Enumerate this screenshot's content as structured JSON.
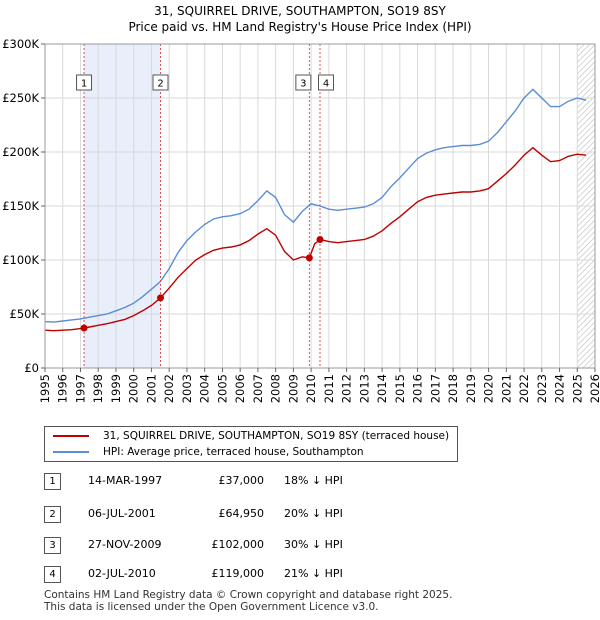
{
  "title_line1": "31, SQUIRREL DRIVE, SOUTHAMPTON, SO19 8SY",
  "title_line2": "Price paid vs. HM Land Registry's House Price Index (HPI)",
  "colors": {
    "property": "#c00000",
    "hpi": "#5b8dd6",
    "shade": "#e8eefa",
    "marker_line": "#e05050"
  },
  "legend": {
    "property": "31, SQUIRREL DRIVE, SOUTHAMPTON, SO19 8SY (terraced house)",
    "hpi": "HPI: Average price, terraced house, Southampton"
  },
  "transactions": [
    {
      "label": "1",
      "date": "14-MAR-1997",
      "price": "£37,000",
      "hpi": "18% ↓ HPI"
    },
    {
      "label": "2",
      "date": "06-JUL-2001",
      "price": "£64,950",
      "hpi": "20% ↓ HPI"
    },
    {
      "label": "3",
      "date": "27-NOV-2009",
      "price": "£102,000",
      "hpi": "30% ↓ HPI"
    },
    {
      "label": "4",
      "date": "02-JUL-2010",
      "price": "£119,000",
      "hpi": "21% ↓ HPI"
    }
  ],
  "footer_line1": "Contains HM Land Registry data © Crown copyright and database right 2025.",
  "footer_line2": "This data is licensed under the Open Government Licence v3.0.",
  "chart_data": {
    "type": "line",
    "xlim": [
      1995,
      2026
    ],
    "ylim": [
      0,
      300000
    ],
    "xticks": [
      "1995",
      "1996",
      "1997",
      "1998",
      "1999",
      "2000",
      "2001",
      "2002",
      "2003",
      "2004",
      "2005",
      "2006",
      "2007",
      "2008",
      "2009",
      "2010",
      "2011",
      "2012",
      "2013",
      "2014",
      "2015",
      "2016",
      "2017",
      "2018",
      "2019",
      "2020",
      "2021",
      "2022",
      "2023",
      "2024",
      "2025",
      "2026"
    ],
    "yticks": [
      {
        "value": 0,
        "label": "£0"
      },
      {
        "value": 50000,
        "label": "£50K"
      },
      {
        "value": 100000,
        "label": "£100K"
      },
      {
        "value": 150000,
        "label": "£150K"
      },
      {
        "value": 200000,
        "label": "£200K"
      },
      {
        "value": 250000,
        "label": "£250K"
      },
      {
        "value": 300000,
        "label": "£300K"
      }
    ],
    "grid": true,
    "shaded_range": [
      1997.2,
      2001.51
    ],
    "hatched_from": 2025.0,
    "series": [
      {
        "name": "HPI: Average price, terraced house, Southampton",
        "x": [
          1995,
          1995.5,
          1996,
          1996.5,
          1997,
          1997.5,
          1998,
          1998.5,
          1999,
          1999.5,
          2000,
          2000.5,
          2001,
          2001.5,
          2002,
          2002.5,
          2003,
          2003.5,
          2004,
          2004.5,
          2005,
          2005.5,
          2006,
          2006.5,
          2007,
          2007.5,
          2008,
          2008.5,
          2009,
          2009.5,
          2010,
          2010.5,
          2011,
          2011.5,
          2012,
          2012.5,
          2013,
          2013.5,
          2014,
          2014.5,
          2015,
          2015.5,
          2016,
          2016.5,
          2017,
          2017.5,
          2018,
          2018.5,
          2019,
          2019.5,
          2020,
          2020.5,
          2021,
          2021.5,
          2022,
          2022.5,
          2023,
          2023.5,
          2024,
          2024.5,
          2025,
          2025.5
        ],
        "y": [
          43000,
          42500,
          43500,
          44500,
          45500,
          47000,
          48500,
          50000,
          53000,
          56000,
          60000,
          66000,
          73000,
          80000,
          92000,
          107000,
          118000,
          126000,
          133000,
          138000,
          140000,
          141000,
          143000,
          147000,
          155000,
          164000,
          158000,
          142000,
          135000,
          145000,
          152000,
          150000,
          147000,
          146000,
          147000,
          148000,
          149000,
          152000,
          158000,
          168000,
          176000,
          185000,
          194000,
          199000,
          202000,
          204000,
          205000,
          206000,
          206000,
          207000,
          210000,
          218000,
          228000,
          238000,
          250000,
          258000,
          250000,
          242000,
          242000,
          247000,
          250000,
          248000
        ]
      },
      {
        "name": "31, SQUIRREL DRIVE, SOUTHAMPTON, SO19 8SY (terraced house)",
        "x": [
          1995,
          1995.5,
          1996,
          1996.5,
          1997,
          1997.2,
          1997.5,
          1998,
          1998.5,
          1999,
          1999.5,
          2000,
          2000.5,
          2001,
          2001.51,
          2002,
          2002.5,
          2003,
          2003.5,
          2004,
          2004.5,
          2005,
          2005.5,
          2006,
          2006.5,
          2007,
          2007.5,
          2008,
          2008.5,
          2009,
          2009.5,
          2009.9,
          2010.2,
          2010.5,
          2011,
          2011.5,
          2012,
          2012.5,
          2013,
          2013.5,
          2014,
          2014.5,
          2015,
          2015.5,
          2016,
          2016.5,
          2017,
          2017.5,
          2018,
          2018.5,
          2019,
          2019.5,
          2020,
          2020.5,
          2021,
          2021.5,
          2022,
          2022.5,
          2023,
          2023.5,
          2024,
          2024.5,
          2025,
          2025.5
        ],
        "y": [
          35000,
          34500,
          35000,
          35500,
          36500,
          37000,
          38000,
          39500,
          41000,
          43000,
          45000,
          48500,
          53000,
          58000,
          64950,
          74000,
          84000,
          92000,
          100000,
          105000,
          109000,
          111000,
          112000,
          114000,
          118000,
          124000,
          129000,
          123000,
          108000,
          100000,
          103000,
          102000,
          115000,
          119000,
          117000,
          116000,
          117000,
          118000,
          119000,
          122000,
          127000,
          134000,
          140000,
          147000,
          154000,
          158000,
          160000,
          161000,
          162000,
          163000,
          163000,
          164000,
          166000,
          173000,
          180000,
          188000,
          197000,
          204000,
          197000,
          191000,
          192000,
          196000,
          198000,
          197000
        ]
      }
    ],
    "sales": [
      {
        "label": "1",
        "x": 1997.2,
        "y": 37000
      },
      {
        "label": "2",
        "x": 2001.51,
        "y": 64950
      },
      {
        "label": "3",
        "x": 2009.9,
        "y": 102000
      },
      {
        "label": "4",
        "x": 2010.5,
        "y": 119000
      }
    ]
  }
}
